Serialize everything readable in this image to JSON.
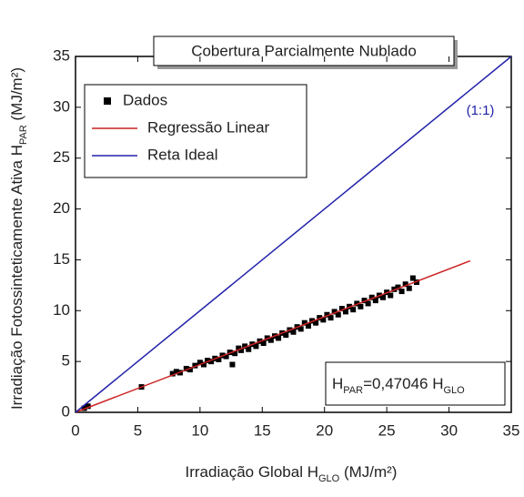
{
  "chart_data": {
    "type": "scatter",
    "title": "Cobertura Parcialmente Nublado",
    "xlabel": "Irradiação Global H",
    "xlabel_sub": "GLO",
    "xlabel_end": " (MJ/m²)",
    "ylabel": "Irradiação Fotossinteticamente Ativa H",
    "ylabel_sub": "PAR",
    "ylabel_end": " (MJ/m²)",
    "annotation": "(1:1)",
    "equation": [
      "H",
      "PAR",
      "=0,47046 H",
      "GLO"
    ],
    "xlim": [
      0,
      35
    ],
    "ylim": [
      0,
      35
    ],
    "xticks": [
      0,
      5,
      10,
      15,
      20,
      25,
      30,
      35
    ],
    "yticks": [
      0,
      5,
      10,
      15,
      20,
      25,
      30,
      35
    ],
    "series": [
      {
        "name": "Dados",
        "type": "scatter",
        "color": "#000000",
        "x": [
          0.7,
          1.0,
          5.3,
          7.8,
          8.1,
          8.4,
          8.9,
          9.2,
          9.6,
          10.0,
          10.3,
          10.6,
          10.9,
          11.2,
          11.5,
          11.8,
          12.1,
          12.4,
          12.6,
          12.8,
          13.1,
          13.3,
          13.6,
          13.9,
          14.2,
          14.5,
          14.8,
          15.1,
          15.4,
          15.7,
          16.0,
          16.3,
          16.6,
          16.9,
          17.2,
          17.5,
          17.8,
          18.1,
          18.4,
          18.7,
          19.0,
          19.3,
          19.6,
          19.9,
          20.2,
          20.5,
          20.8,
          21.1,
          21.4,
          21.7,
          22.0,
          22.3,
          22.6,
          22.9,
          23.2,
          23.5,
          23.8,
          24.1,
          24.4,
          24.7,
          25.0,
          25.3,
          25.6,
          25.9,
          26.2,
          26.5,
          26.8,
          27.1,
          27.4
        ],
        "values": [
          0.4,
          0.6,
          2.5,
          3.8,
          4.0,
          3.9,
          4.3,
          4.2,
          4.6,
          4.9,
          4.7,
          5.1,
          5.0,
          5.3,
          5.2,
          5.6,
          5.5,
          5.9,
          4.7,
          5.8,
          6.3,
          6.1,
          6.5,
          6.2,
          6.7,
          6.5,
          7.0,
          6.8,
          7.3,
          7.1,
          7.5,
          7.3,
          7.8,
          7.6,
          8.1,
          7.9,
          8.4,
          8.2,
          8.8,
          8.5,
          9.0,
          8.8,
          9.3,
          9.1,
          9.6,
          9.3,
          9.9,
          9.6,
          10.2,
          9.9,
          10.4,
          10.1,
          10.7,
          10.4,
          11.0,
          10.7,
          11.3,
          11.0,
          11.5,
          11.3,
          11.8,
          11.5,
          12.1,
          12.3,
          11.9,
          12.6,
          12.2,
          13.2,
          12.8
        ]
      },
      {
        "name": "Regressão Linear",
        "type": "line",
        "color": "#cc2222",
        "x": [
          0,
          31.7
        ],
        "values": [
          0,
          14.9
        ]
      },
      {
        "name": "Reta Ideal",
        "type": "line",
        "color": "#2222aa",
        "x": [
          0,
          35
        ],
        "values": [
          0,
          35
        ]
      }
    ]
  }
}
